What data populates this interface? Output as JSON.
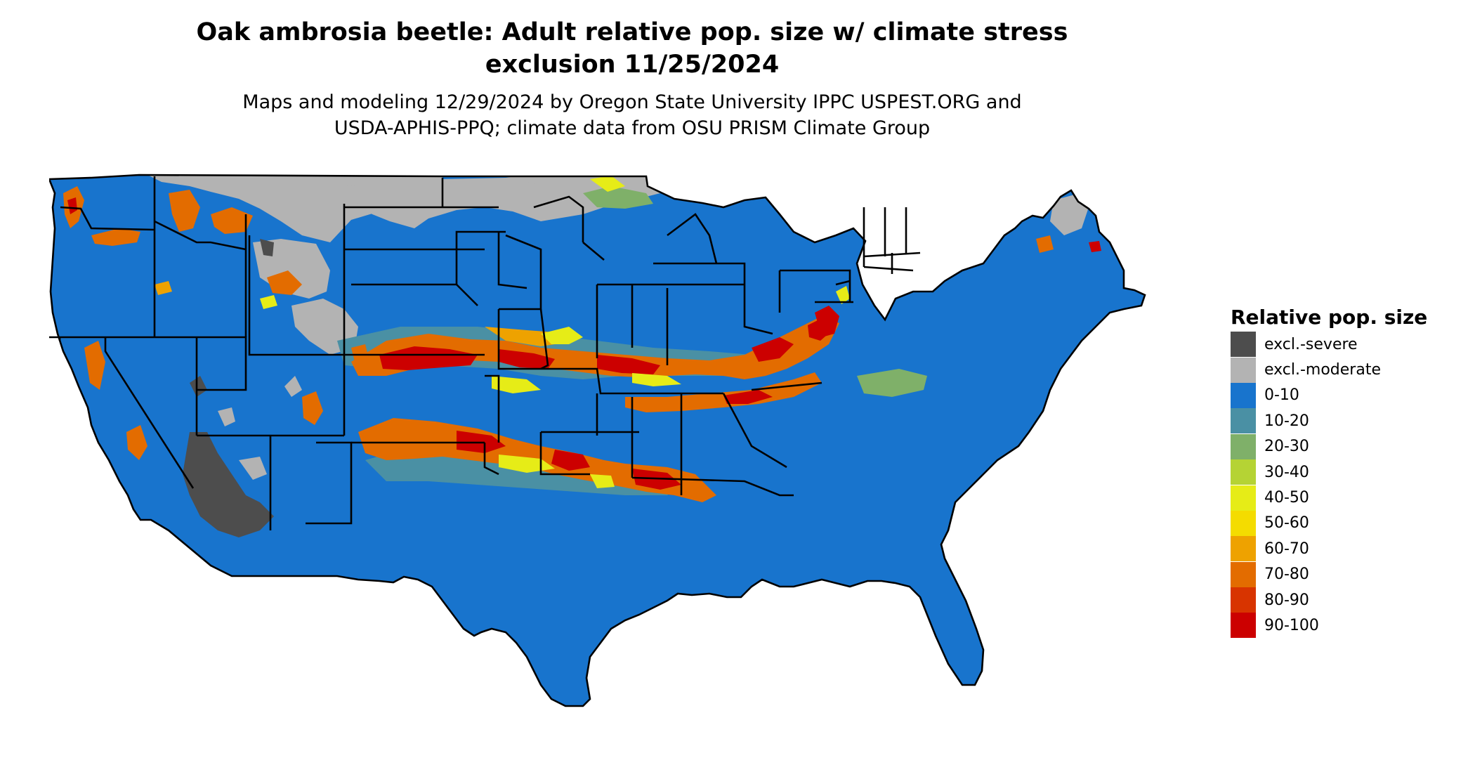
{
  "title": {
    "line1": "Oak ambrosia beetle: Adult relative pop. size w/ climate stress",
    "line2": "exclusion 11/25/2024"
  },
  "subtitle": {
    "line1": "Maps and modeling 12/29/2024 by Oregon State University IPPC USPEST.ORG and",
    "line2": "USDA-APHIS-PPQ; climate data from OSU PRISM Climate Group"
  },
  "legend": {
    "title": "Relative pop. size",
    "items": [
      {
        "label": "excl.-severe",
        "color": "#4d4d4d"
      },
      {
        "label": "excl.-moderate",
        "color": "#b3b3b3"
      },
      {
        "label": "0-10",
        "color": "#1874cd"
      },
      {
        "label": "10-20",
        "color": "#4a90a4"
      },
      {
        "label": "20-30",
        "color": "#7fb069"
      },
      {
        "label": "30-40",
        "color": "#b5d334"
      },
      {
        "label": "40-50",
        "color": "#e6ec17"
      },
      {
        "label": "50-60",
        "color": "#f4dc00"
      },
      {
        "label": "60-70",
        "color": "#eea200"
      },
      {
        "label": "70-80",
        "color": "#e36c00"
      },
      {
        "label": "80-90",
        "color": "#d83400"
      },
      {
        "label": "90-100",
        "color": "#cc0000"
      }
    ]
  },
  "map": {
    "region": "contiguous United States",
    "background_class": "0-10",
    "color_keys": {
      "severe": "#4d4d4d",
      "moderate": "#b3b3b3",
      "base": "#1874cd",
      "c10_20": "#4a90a4",
      "c20_30": "#7fb069",
      "c40_50": "#e6ec17",
      "c60_70": "#eea200",
      "c70_80": "#e36c00",
      "c80_90": "#d83400",
      "c90_100": "#cc0000",
      "border": "#000000"
    }
  }
}
